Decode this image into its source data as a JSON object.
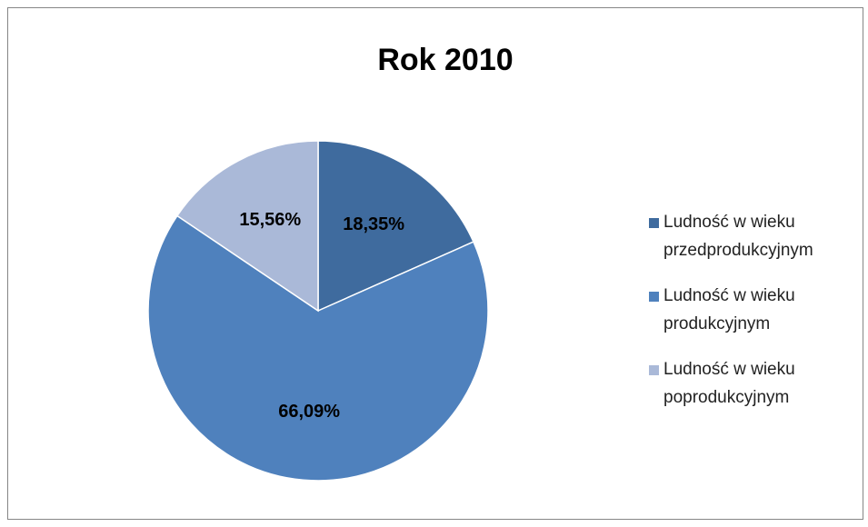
{
  "chart_data": {
    "type": "pie",
    "title": "Rok 2010",
    "categories": [
      "Ludność w wieku przedprodukcyjnym",
      "Ludność w wieku produkcyjnym",
      "Ludność w wieku poprodukcyjnym"
    ],
    "values": [
      18.35,
      66.09,
      15.56
    ],
    "value_labels": [
      "18,35%",
      "66,09%",
      "15,56%"
    ],
    "colors": [
      "#3f6b9e",
      "#4f81bd",
      "#aab9d8"
    ],
    "legend": "right"
  }
}
